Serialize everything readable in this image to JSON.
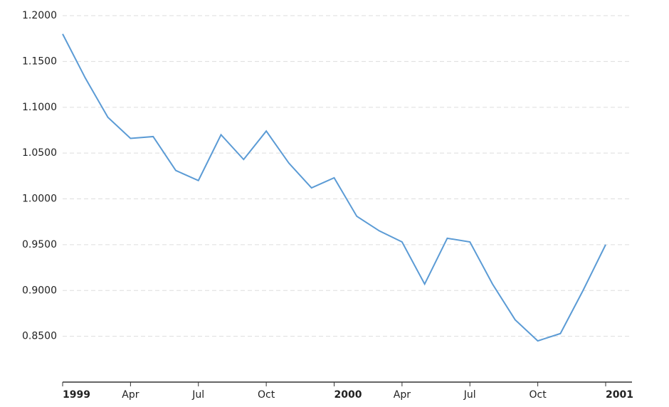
{
  "chart_data": {
    "type": "line",
    "x": [
      "1999-01",
      "1999-02",
      "1999-03",
      "1999-04",
      "1999-05",
      "1999-06",
      "1999-07",
      "1999-08",
      "1999-09",
      "1999-10",
      "1999-11",
      "1999-12",
      "2000-01",
      "2000-02",
      "2000-03",
      "2000-04",
      "2000-05",
      "2000-06",
      "2000-07",
      "2000-08",
      "2000-09",
      "2000-10",
      "2000-11",
      "2000-12",
      "2001-01"
    ],
    "series": [
      {
        "color": "#5b9bd5",
        "values": [
          1.18,
          1.132,
          1.089,
          1.066,
          1.068,
          1.031,
          1.02,
          1.07,
          1.043,
          1.074,
          1.039,
          1.012,
          1.023,
          0.981,
          0.965,
          0.953,
          0.907,
          0.957,
          0.953,
          0.907,
          0.868,
          0.845,
          0.853,
          0.9,
          0.95
        ]
      }
    ],
    "xticks": [
      {
        "value": "1999-01",
        "label": "1999"
      },
      {
        "value": "1999-04",
        "label": "Apr"
      },
      {
        "value": "1999-07",
        "label": "Jul"
      },
      {
        "value": "1999-10",
        "label": "Oct"
      },
      {
        "value": "2000-01",
        "label": "2000"
      },
      {
        "value": "2000-04",
        "label": "Apr"
      },
      {
        "value": "2000-07",
        "label": "Jul"
      },
      {
        "value": "2000-10",
        "label": "Oct"
      },
      {
        "value": "2001-01",
        "label": "2001"
      }
    ],
    "ylim": [
      0.8,
      1.2
    ],
    "yticks": [
      {
        "value": 0.85,
        "label": "0.8500"
      },
      {
        "value": 0.9,
        "label": "0.9000"
      },
      {
        "value": 0.95,
        "label": "0.9500"
      },
      {
        "value": 1.0,
        "label": "1.0000"
      },
      {
        "value": 1.05,
        "label": "1.0500"
      },
      {
        "value": 1.1,
        "label": "1.1000"
      },
      {
        "value": 1.15,
        "label": "1.1500"
      },
      {
        "value": 1.2,
        "label": "1.2000"
      }
    ],
    "grid": true
  }
}
